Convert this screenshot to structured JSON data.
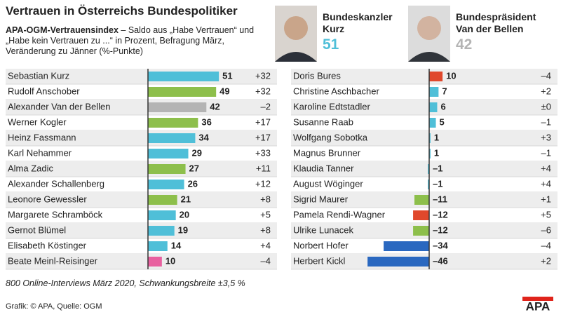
{
  "title": "Vertrauen in Österreichs Bundespolitiker",
  "subtitle_bold": "APA-OGM-Vertrauensindex",
  "subtitle": "– Saldo aus „Habe Vertrauen“ und „Habe kein Vertrauen zu ...“ in Prozent, Befragung März, Veränderung zu Jänner (%-Punkte)",
  "highlights": [
    {
      "role": "Bundeskanzler",
      "name": "Kurz",
      "value": 51,
      "color": "#4fbfd8"
    },
    {
      "role": "Bundespräsident",
      "name": "Van der Bellen",
      "value": 42,
      "color": "#b4b4b4"
    }
  ],
  "chart_data": [
    {
      "type": "bar",
      "orientation": "horizontal",
      "xlim": [
        0,
        60
      ],
      "categories": [
        "Sebastian Kurz",
        "Rudolf Anschober",
        "Alexander Van der Bellen",
        "Werner Kogler",
        "Heinz Fassmann",
        "Karl Nehammer",
        "Alma Zadic",
        "Alexander Schallenberg",
        "Leonore Gewessler",
        "Margarete Schramböck",
        "Gernot Blümel",
        "Elisabeth Köstinger",
        "Beate Meinl-Reisinger"
      ],
      "values": [
        51,
        49,
        42,
        36,
        34,
        29,
        27,
        26,
        21,
        20,
        19,
        14,
        10
      ],
      "colors": [
        "#4fbfd8",
        "#8dbf4b",
        "#b4b4b4",
        "#8dbf4b",
        "#4fbfd8",
        "#4fbfd8",
        "#8dbf4b",
        "#4fbfd8",
        "#8dbf4b",
        "#4fbfd8",
        "#4fbfd8",
        "#4fbfd8",
        "#e8609f"
      ],
      "changes": [
        "+32",
        "+32",
        "–2",
        "+17",
        "+17",
        "+33",
        "+11",
        "+12",
        "+8",
        "+5",
        "+8",
        "+4",
        "–4"
      ]
    },
    {
      "type": "bar",
      "orientation": "horizontal",
      "xlim": [
        -50,
        50
      ],
      "categories": [
        "Doris Bures",
        "Christine Aschbacher",
        "Karoline Edtstadler",
        "Susanne Raab",
        "Wolfgang Sobotka",
        "Magnus Brunner",
        "Klaudia Tanner",
        "August Wöginger",
        "Sigrid Maurer",
        "Pamela Rendi-Wagner",
        "Ulrike Lunacek",
        "Norbert Hofer",
        "Herbert Kickl"
      ],
      "values": [
        10,
        7,
        6,
        5,
        1,
        1,
        -1,
        -1,
        -11,
        -12,
        -12,
        -34,
        -46
      ],
      "value_labels": [
        "10",
        "7",
        "6",
        "5",
        "1",
        "1",
        "–1",
        "–1",
        "–11",
        "–12",
        "–12",
        "–34",
        "–46"
      ],
      "colors": [
        "#e0482c",
        "#4fbfd8",
        "#4fbfd8",
        "#4fbfd8",
        "#4fbfd8",
        "#4fbfd8",
        "#4fbfd8",
        "#4fbfd8",
        "#8dbf4b",
        "#e0482c",
        "#8dbf4b",
        "#2a68c0",
        "#2a68c0"
      ],
      "changes": [
        "–4",
        "+2",
        "±0",
        "–1",
        "+3",
        "–1",
        "+4",
        "+4",
        "+1",
        "+5",
        "–6",
        "–4",
        "+2"
      ]
    }
  ],
  "footnote": "800 Online-Interviews März 2020, Schwankungsbreite ±3,5 %",
  "source": "Grafik: © APA, Quelle: OGM",
  "logo": "APA"
}
